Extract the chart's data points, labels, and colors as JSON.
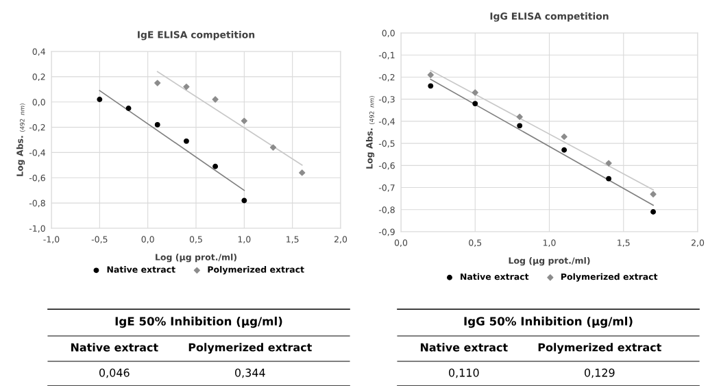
{
  "chart_data": [
    {
      "type": "scatter",
      "title": "IgE ELISA competition",
      "xlabel": "Log (µg prot./ml)",
      "ylabel": "Log Abs. $_{(492}$ $_{nm)}$",
      "xlim": [
        -1.0,
        2.0
      ],
      "xticks": [
        {
          "value": -1.0,
          "label": "-1,0"
        },
        {
          "value": -0.5,
          "label": "-0,5"
        },
        {
          "value": 0.0,
          "label": "0,0"
        },
        {
          "value": 0.5,
          "label": "0,5"
        },
        {
          "value": 1.0,
          "label": "1,0"
        },
        {
          "value": 1.5,
          "label": "1,5"
        },
        {
          "value": 2.0,
          "label": "2,0"
        }
      ],
      "ylim": [
        -1.0,
        0.4
      ],
      "yticks": [
        {
          "value": -1.0,
          "label": "-1,0"
        },
        {
          "value": -0.8,
          "label": "-0,8"
        },
        {
          "value": -0.6,
          "label": "-0,6"
        },
        {
          "value": -0.4,
          "label": "-0,4"
        },
        {
          "value": -0.2,
          "label": "-0,2"
        },
        {
          "value": 0.0,
          "label": "0,0"
        },
        {
          "value": 0.2,
          "label": "0,2"
        },
        {
          "value": 0.4,
          "label": "0,4"
        }
      ],
      "grid": true,
      "legend": "bottom",
      "series": [
        {
          "name": "Native extract",
          "color": "#000000",
          "marker": "circle",
          "x": [
            -0.5,
            -0.2,
            0.1,
            0.4,
            0.7,
            1.0
          ],
          "values": [
            0.02,
            -0.05,
            -0.18,
            -0.31,
            -0.51,
            -0.78
          ]
        },
        {
          "name": "Polymerized extract",
          "color": "#8c8c8c",
          "marker": "diamond",
          "x": [
            0.1,
            0.4,
            0.7,
            1.0,
            1.3,
            1.6
          ],
          "values": [
            0.15,
            0.12,
            0.02,
            -0.15,
            -0.36,
            -0.56
          ]
        },
        {
          "type": "line",
          "color": "#7f7f7f",
          "x": [
            -0.5,
            1.0
          ],
          "values": [
            0.09,
            -0.7
          ]
        },
        {
          "type": "line",
          "color": "#c8c8c8",
          "x": [
            0.1,
            1.6
          ],
          "values": [
            0.24,
            -0.5
          ]
        }
      ],
      "annotations": [
        "IgE 50% Inhibition (µg/ml)",
        "Native extract",
        "Polymerized extract",
        "0,046",
        "0,344"
      ]
    },
    {
      "type": "scatter",
      "title": "IgG ELISA competition",
      "xlabel": "Log (µg prot./ml)",
      "ylabel": "Log Abs. $_{(492}$ $_{nm)}$",
      "xlim": [
        0.0,
        2.0
      ],
      "xticks": [
        {
          "value": 0.0,
          "label": "0,0"
        },
        {
          "value": 0.5,
          "label": "0,5"
        },
        {
          "value": 1.0,
          "label": "1,0"
        },
        {
          "value": 1.5,
          "label": "1,5"
        },
        {
          "value": 2.0,
          "label": "2,0"
        }
      ],
      "ylim": [
        -0.9,
        0.0
      ],
      "yticks": [
        {
          "value": -0.9,
          "label": "-0,9"
        },
        {
          "value": -0.8,
          "label": "-0,8"
        },
        {
          "value": -0.7,
          "label": "-0,7"
        },
        {
          "value": -0.6,
          "label": "-0,6"
        },
        {
          "value": -0.5,
          "label": "-0,5"
        },
        {
          "value": -0.4,
          "label": "-0,4"
        },
        {
          "value": -0.3,
          "label": "-0,3"
        },
        {
          "value": -0.2,
          "label": "-0,2"
        },
        {
          "value": -0.1,
          "label": "-0,1"
        },
        {
          "value": 0.0,
          "label": "0,0"
        }
      ],
      "grid": true,
      "legend": "bottom",
      "series": [
        {
          "name": "Native extract",
          "color": "#000000",
          "marker": "circle",
          "x": [
            0.2,
            0.5,
            0.8,
            1.1,
            1.4,
            1.7
          ],
          "values": [
            -0.24,
            -0.32,
            -0.42,
            -0.53,
            -0.66,
            -0.81
          ]
        },
        {
          "name": "Polymerized extract",
          "color": "#8c8c8c",
          "marker": "diamond",
          "x": [
            0.2,
            0.5,
            0.8,
            1.1,
            1.4,
            1.7
          ],
          "values": [
            -0.19,
            -0.27,
            -0.38,
            -0.47,
            -0.59,
            -0.73
          ]
        },
        {
          "type": "line",
          "color": "#7f7f7f",
          "x": [
            0.2,
            1.7
          ],
          "values": [
            -0.21,
            -0.78
          ]
        },
        {
          "type": "line",
          "color": "#c8c8c8",
          "x": [
            0.2,
            1.7
          ],
          "values": [
            -0.17,
            -0.71
          ]
        }
      ],
      "annotations": [
        "IgG 50% Inhibition (µg/ml)",
        "Native extract",
        "Polymerized extract",
        "0,110",
        "0,129"
      ]
    }
  ]
}
